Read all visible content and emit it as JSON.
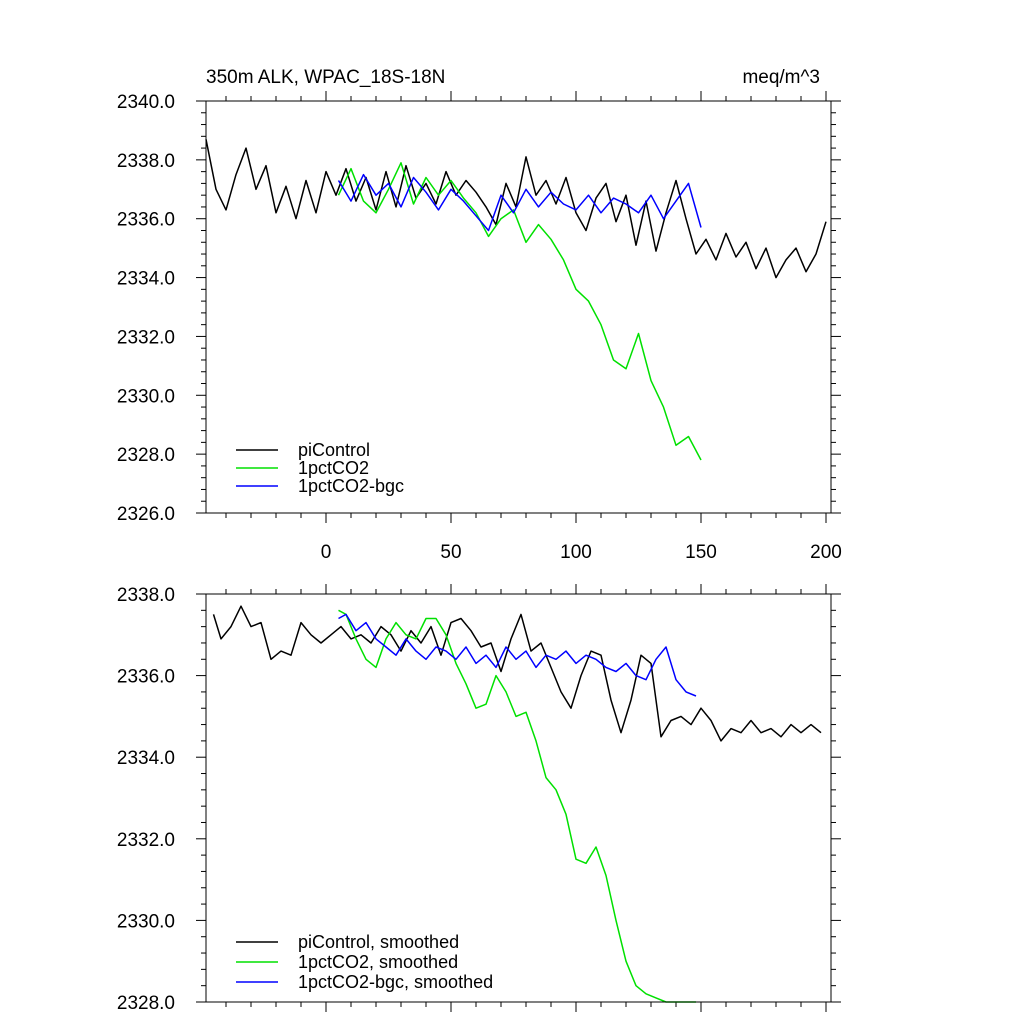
{
  "chart_data": [
    {
      "type": "line",
      "title": "350m ALK, WPAC_18S-18N",
      "title_right": "meq/m^3",
      "xlim": [
        -48,
        202
      ],
      "ylim": [
        2326,
        2340
      ],
      "x_ticks": [
        0,
        50,
        100,
        150,
        200
      ],
      "x_tick_labels": [
        "0",
        "50",
        "100",
        "150",
        "200"
      ],
      "y_ticks": [
        2326,
        2328,
        2330,
        2332,
        2334,
        2336,
        2338,
        2340
      ],
      "y_tick_labels": [
        "2326.0",
        "2328.0",
        "2330.0",
        "2332.0",
        "2334.0",
        "2336.0",
        "2338.0",
        "2340.0"
      ],
      "legend_position": "bottom-left",
      "series": [
        {
          "name": "piControl",
          "color": "#000000",
          "x": [
            -48,
            -44,
            -40,
            -36,
            -32,
            -28,
            -24,
            -20,
            -16,
            -12,
            -8,
            -4,
            0,
            4,
            8,
            12,
            16,
            20,
            24,
            28,
            32,
            36,
            40,
            44,
            48,
            52,
            56,
            60,
            64,
            68,
            72,
            76,
            80,
            84,
            88,
            92,
            96,
            100,
            104,
            108,
            112,
            116,
            120,
            124,
            128,
            132,
            136,
            140,
            144,
            148,
            152,
            156,
            160,
            164,
            168,
            172,
            176,
            180,
            184,
            188,
            192,
            196,
            200
          ],
          "values": [
            2338.7,
            2337.0,
            2336.3,
            2337.5,
            2338.4,
            2337.0,
            2337.8,
            2336.2,
            2337.1,
            2336.0,
            2337.3,
            2336.2,
            2337.6,
            2336.8,
            2337.7,
            2336.6,
            2337.4,
            2336.3,
            2337.6,
            2336.4,
            2337.8,
            2336.7,
            2337.2,
            2336.5,
            2337.6,
            2336.8,
            2337.3,
            2336.9,
            2336.4,
            2335.8,
            2337.2,
            2336.4,
            2338.1,
            2336.8,
            2337.3,
            2336.5,
            2337.4,
            2336.2,
            2335.6,
            2336.7,
            2337.2,
            2335.9,
            2336.8,
            2335.1,
            2336.6,
            2334.9,
            2336.2,
            2337.3,
            2336.0,
            2334.8,
            2335.3,
            2334.6,
            2335.5,
            2334.7,
            2335.2,
            2334.3,
            2335.0,
            2334.0,
            2334.6,
            2335.0,
            2334.2,
            2334.8,
            2335.9
          ]
        },
        {
          "name": "1pctCO2",
          "color": "#00e000",
          "x": [
            5,
            10,
            15,
            20,
            25,
            30,
            35,
            40,
            45,
            50,
            55,
            60,
            65,
            70,
            75,
            80,
            85,
            90,
            95,
            100,
            105,
            110,
            115,
            120,
            125,
            130,
            135,
            140,
            145,
            150
          ],
          "values": [
            2336.8,
            2337.7,
            2336.6,
            2336.2,
            2337.0,
            2337.9,
            2336.5,
            2337.4,
            2336.8,
            2337.3,
            2336.7,
            2336.2,
            2335.4,
            2336.0,
            2336.3,
            2335.2,
            2335.8,
            2335.3,
            2334.6,
            2333.6,
            2333.2,
            2332.4,
            2331.2,
            2330.9,
            2332.1,
            2330.5,
            2329.6,
            2328.3,
            2328.6,
            2327.8
          ]
        },
        {
          "name": "1pctCO2-bgc",
          "color": "#0000ff",
          "x": [
            5,
            10,
            15,
            20,
            25,
            30,
            35,
            40,
            45,
            50,
            55,
            60,
            65,
            70,
            75,
            80,
            85,
            90,
            95,
            100,
            105,
            110,
            115,
            120,
            125,
            130,
            135,
            140,
            145,
            150
          ],
          "values": [
            2337.3,
            2336.6,
            2337.5,
            2336.8,
            2337.2,
            2336.4,
            2337.4,
            2336.9,
            2336.3,
            2337.0,
            2336.6,
            2336.1,
            2335.6,
            2336.8,
            2336.2,
            2337.0,
            2336.4,
            2336.9,
            2336.5,
            2336.3,
            2336.8,
            2336.2,
            2336.7,
            2336.5,
            2336.2,
            2336.8,
            2336.0,
            2336.6,
            2337.2,
            2335.7
          ]
        }
      ]
    },
    {
      "type": "line",
      "xlim": [
        -48,
        202
      ],
      "ylim": [
        2328,
        2338
      ],
      "x_ticks": [
        0,
        50,
        100,
        150,
        200
      ],
      "y_ticks": [
        2328,
        2330,
        2332,
        2334,
        2336,
        2338
      ],
      "y_tick_labels": [
        "2328.0",
        "2330.0",
        "2332.0",
        "2334.0",
        "2336.0",
        "2338.0"
      ],
      "legend_position": "bottom-left",
      "series": [
        {
          "name": "piControl, smoothed",
          "color": "#000000",
          "x": [
            -45,
            -42,
            -38,
            -34,
            -30,
            -26,
            -22,
            -18,
            -14,
            -10,
            -6,
            -2,
            2,
            6,
            10,
            14,
            18,
            22,
            26,
            30,
            34,
            38,
            42,
            46,
            50,
            54,
            58,
            62,
            66,
            70,
            74,
            78,
            82,
            86,
            90,
            94,
            98,
            102,
            106,
            110,
            114,
            118,
            122,
            126,
            130,
            134,
            138,
            142,
            146,
            150,
            154,
            158,
            162,
            166,
            170,
            174,
            178,
            182,
            186,
            190,
            194,
            198
          ],
          "values": [
            2337.5,
            2336.9,
            2337.2,
            2337.7,
            2337.2,
            2337.3,
            2336.4,
            2336.6,
            2336.5,
            2337.3,
            2337.0,
            2336.8,
            2337.0,
            2337.2,
            2336.9,
            2337.0,
            2336.8,
            2337.2,
            2337.0,
            2336.6,
            2337.1,
            2336.8,
            2337.2,
            2336.5,
            2337.3,
            2337.4,
            2337.1,
            2336.7,
            2336.8,
            2336.1,
            2336.9,
            2337.5,
            2336.6,
            2336.8,
            2336.2,
            2335.6,
            2335.2,
            2336.0,
            2336.6,
            2336.5,
            2335.4,
            2334.6,
            2335.4,
            2336.5,
            2336.3,
            2334.5,
            2334.9,
            2335.0,
            2334.8,
            2335.2,
            2334.9,
            2334.4,
            2334.7,
            2334.6,
            2334.9,
            2334.6,
            2334.7,
            2334.5,
            2334.8,
            2334.6,
            2334.8,
            2334.6
          ]
        },
        {
          "name": "1pctCO2, smoothed",
          "color": "#00e000",
          "x": [
            5,
            8,
            12,
            16,
            20,
            24,
            28,
            32,
            36,
            40,
            44,
            48,
            52,
            56,
            60,
            64,
            68,
            72,
            76,
            80,
            84,
            88,
            92,
            96,
            100,
            104,
            108,
            112,
            116,
            120,
            124,
            128,
            132,
            136,
            140,
            144,
            148
          ],
          "values": [
            2337.6,
            2337.5,
            2336.9,
            2336.4,
            2336.2,
            2336.9,
            2337.3,
            2337.0,
            2336.9,
            2337.4,
            2337.4,
            2337.0,
            2336.3,
            2335.8,
            2335.2,
            2335.3,
            2336.0,
            2335.6,
            2335.0,
            2335.1,
            2334.4,
            2333.5,
            2333.2,
            2332.6,
            2331.5,
            2331.4,
            2331.8,
            2331.1,
            2330.0,
            2329.0,
            2328.4,
            2328.2,
            2328.1,
            2328.0,
            2328.0,
            2328.0,
            2328.0
          ]
        },
        {
          "name": "1pctCO2-bgc, smoothed",
          "color": "#0000ff",
          "x": [
            5,
            8,
            12,
            16,
            20,
            24,
            28,
            32,
            36,
            40,
            44,
            48,
            52,
            56,
            60,
            64,
            68,
            72,
            76,
            80,
            84,
            88,
            92,
            96,
            100,
            104,
            108,
            112,
            116,
            120,
            124,
            128,
            132,
            136,
            140,
            144,
            148
          ],
          "values": [
            2337.4,
            2337.5,
            2337.1,
            2337.3,
            2336.9,
            2336.7,
            2336.5,
            2336.9,
            2336.6,
            2336.4,
            2336.7,
            2336.6,
            2336.4,
            2336.7,
            2336.3,
            2336.5,
            2336.2,
            2336.7,
            2336.4,
            2336.6,
            2336.2,
            2336.5,
            2336.4,
            2336.6,
            2336.3,
            2336.5,
            2336.4,
            2336.2,
            2336.1,
            2336.3,
            2336.0,
            2335.9,
            2336.4,
            2336.7,
            2335.9,
            2335.6,
            2335.5
          ]
        }
      ]
    }
  ]
}
